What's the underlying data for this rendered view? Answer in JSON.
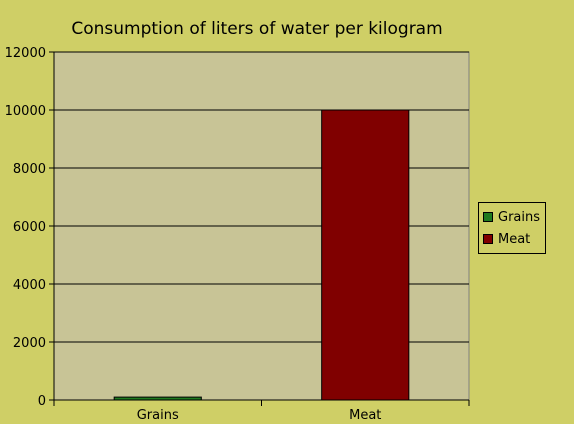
{
  "chart_data": {
    "type": "bar",
    "title": "Consumption of liters of water per kilogram",
    "xlabel": "",
    "ylabel": "",
    "categories": [
      "Grains",
      "Meat"
    ],
    "values": [
      100,
      10000
    ],
    "colors": [
      "#1f7a1f",
      "#800000"
    ],
    "ylim": [
      0,
      12000
    ],
    "yticks": [
      0,
      2000,
      4000,
      6000,
      8000,
      10000,
      12000
    ],
    "grid": true,
    "legend": {
      "placement": "right",
      "entries": [
        {
          "label": "Grains",
          "color": "#1f7a1f"
        },
        {
          "label": "Meat",
          "color": "#800000"
        }
      ]
    },
    "plot_background": "#c8c496",
    "page_background": "#cfcf66"
  }
}
